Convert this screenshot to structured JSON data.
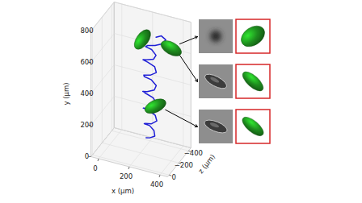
{
  "chart_data": {
    "type": "line3d",
    "x_label": "x (μm)",
    "y_label": "y (μm)",
    "z_label": "z (μm)",
    "xlim": [
      -50,
      450
    ],
    "ylim": [
      0,
      800
    ],
    "zlim": [
      -450,
      30
    ],
    "xticks": [
      0,
      200,
      400
    ],
    "yticks": [
      0,
      200,
      400,
      600,
      800
    ],
    "zticks": [
      {
        "value": -400,
        "label": "−400"
      },
      {
        "value": -200,
        "label": "−200"
      },
      0
    ],
    "grid": true,
    "color": "#1f1fd6",
    "x": [
      240,
      270,
      300,
      285,
      250,
      220,
      235,
      280,
      310,
      290,
      245,
      215,
      240,
      290,
      305,
      275,
      230,
      215,
      250,
      295,
      300,
      260,
      220,
      225,
      270,
      305,
      285,
      240,
      215,
      245,
      290,
      300,
      265,
      230,
      250,
      300,
      340,
      360,
      330,
      300
    ],
    "y": [
      110,
      125,
      140,
      160,
      175,
      185,
      200,
      215,
      235,
      255,
      270,
      285,
      300,
      320,
      340,
      360,
      375,
      395,
      410,
      430,
      450,
      470,
      485,
      505,
      520,
      540,
      560,
      575,
      595,
      610,
      625,
      645,
      665,
      680,
      700,
      715,
      730,
      755,
      770,
      760
    ],
    "z": [
      -190,
      -170,
      -180,
      -210,
      -230,
      -215,
      -190,
      -175,
      -190,
      -220,
      -230,
      -210,
      -185,
      -180,
      -200,
      -225,
      -225,
      -200,
      -180,
      -185,
      -210,
      -230,
      -215,
      -190,
      -180,
      -195,
      -225,
      -230,
      -205,
      -185,
      -185,
      -205,
      -225,
      -210,
      -190,
      -185,
      -200,
      -215,
      -220,
      -205
    ],
    "snapshots": {
      "x": [
        200,
        400,
        300
      ],
      "y": [
        700,
        710,
        320
      ],
      "z": [
        -250,
        -210,
        -200
      ],
      "color": "#1e8c1e"
    }
  }
}
